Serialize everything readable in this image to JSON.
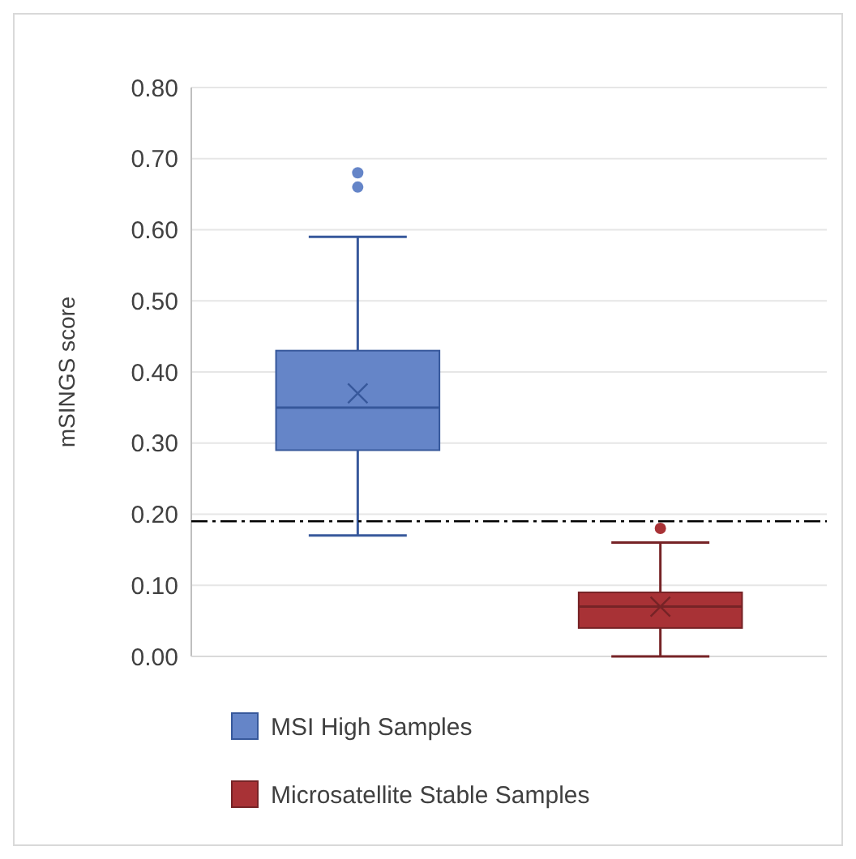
{
  "chart_data": {
    "type": "box",
    "ylabel": "mSINGS score",
    "categories": [
      null,
      null
    ],
    "series": [
      {
        "name": "MSI High Samples",
        "color": "#6585c8",
        "boxes": [
          {
            "low": 0.17,
            "q1": 0.29,
            "median": 0.35,
            "q3": 0.43,
            "high": 0.59,
            "mean": 0.37,
            "outliers": [
              0.66,
              0.68
            ]
          },
          null
        ]
      },
      {
        "name": "Microsatellite Stable Samples",
        "color": "#a83236",
        "boxes": [
          null,
          {
            "low": 0.0,
            "q1": 0.04,
            "median": 0.07,
            "q3": 0.09,
            "high": 0.16,
            "mean": 0.07,
            "outliers": [
              0.18
            ]
          }
        ]
      }
    ],
    "ylim": [
      0,
      0.8
    ],
    "yticks": [
      {
        "value": 0,
        "label": "0.00"
      },
      {
        "value": 0.1,
        "label": "0.10"
      },
      {
        "value": 0.2,
        "label": "0.20"
      },
      {
        "value": 0.3,
        "label": "0.30"
      },
      {
        "value": 0.4,
        "label": "0.40"
      },
      {
        "value": 0.5,
        "label": "0.50"
      },
      {
        "value": 0.6,
        "label": "0.60"
      },
      {
        "value": 0.7,
        "label": "0.70"
      },
      {
        "value": 0.8,
        "label": "0.80"
      }
    ],
    "ref_lines": [
      {
        "axis": "y",
        "value": 0.19,
        "color": "#000000",
        "line_style": "dashdot"
      }
    ],
    "grid": "y",
    "legend": "bottom"
  }
}
